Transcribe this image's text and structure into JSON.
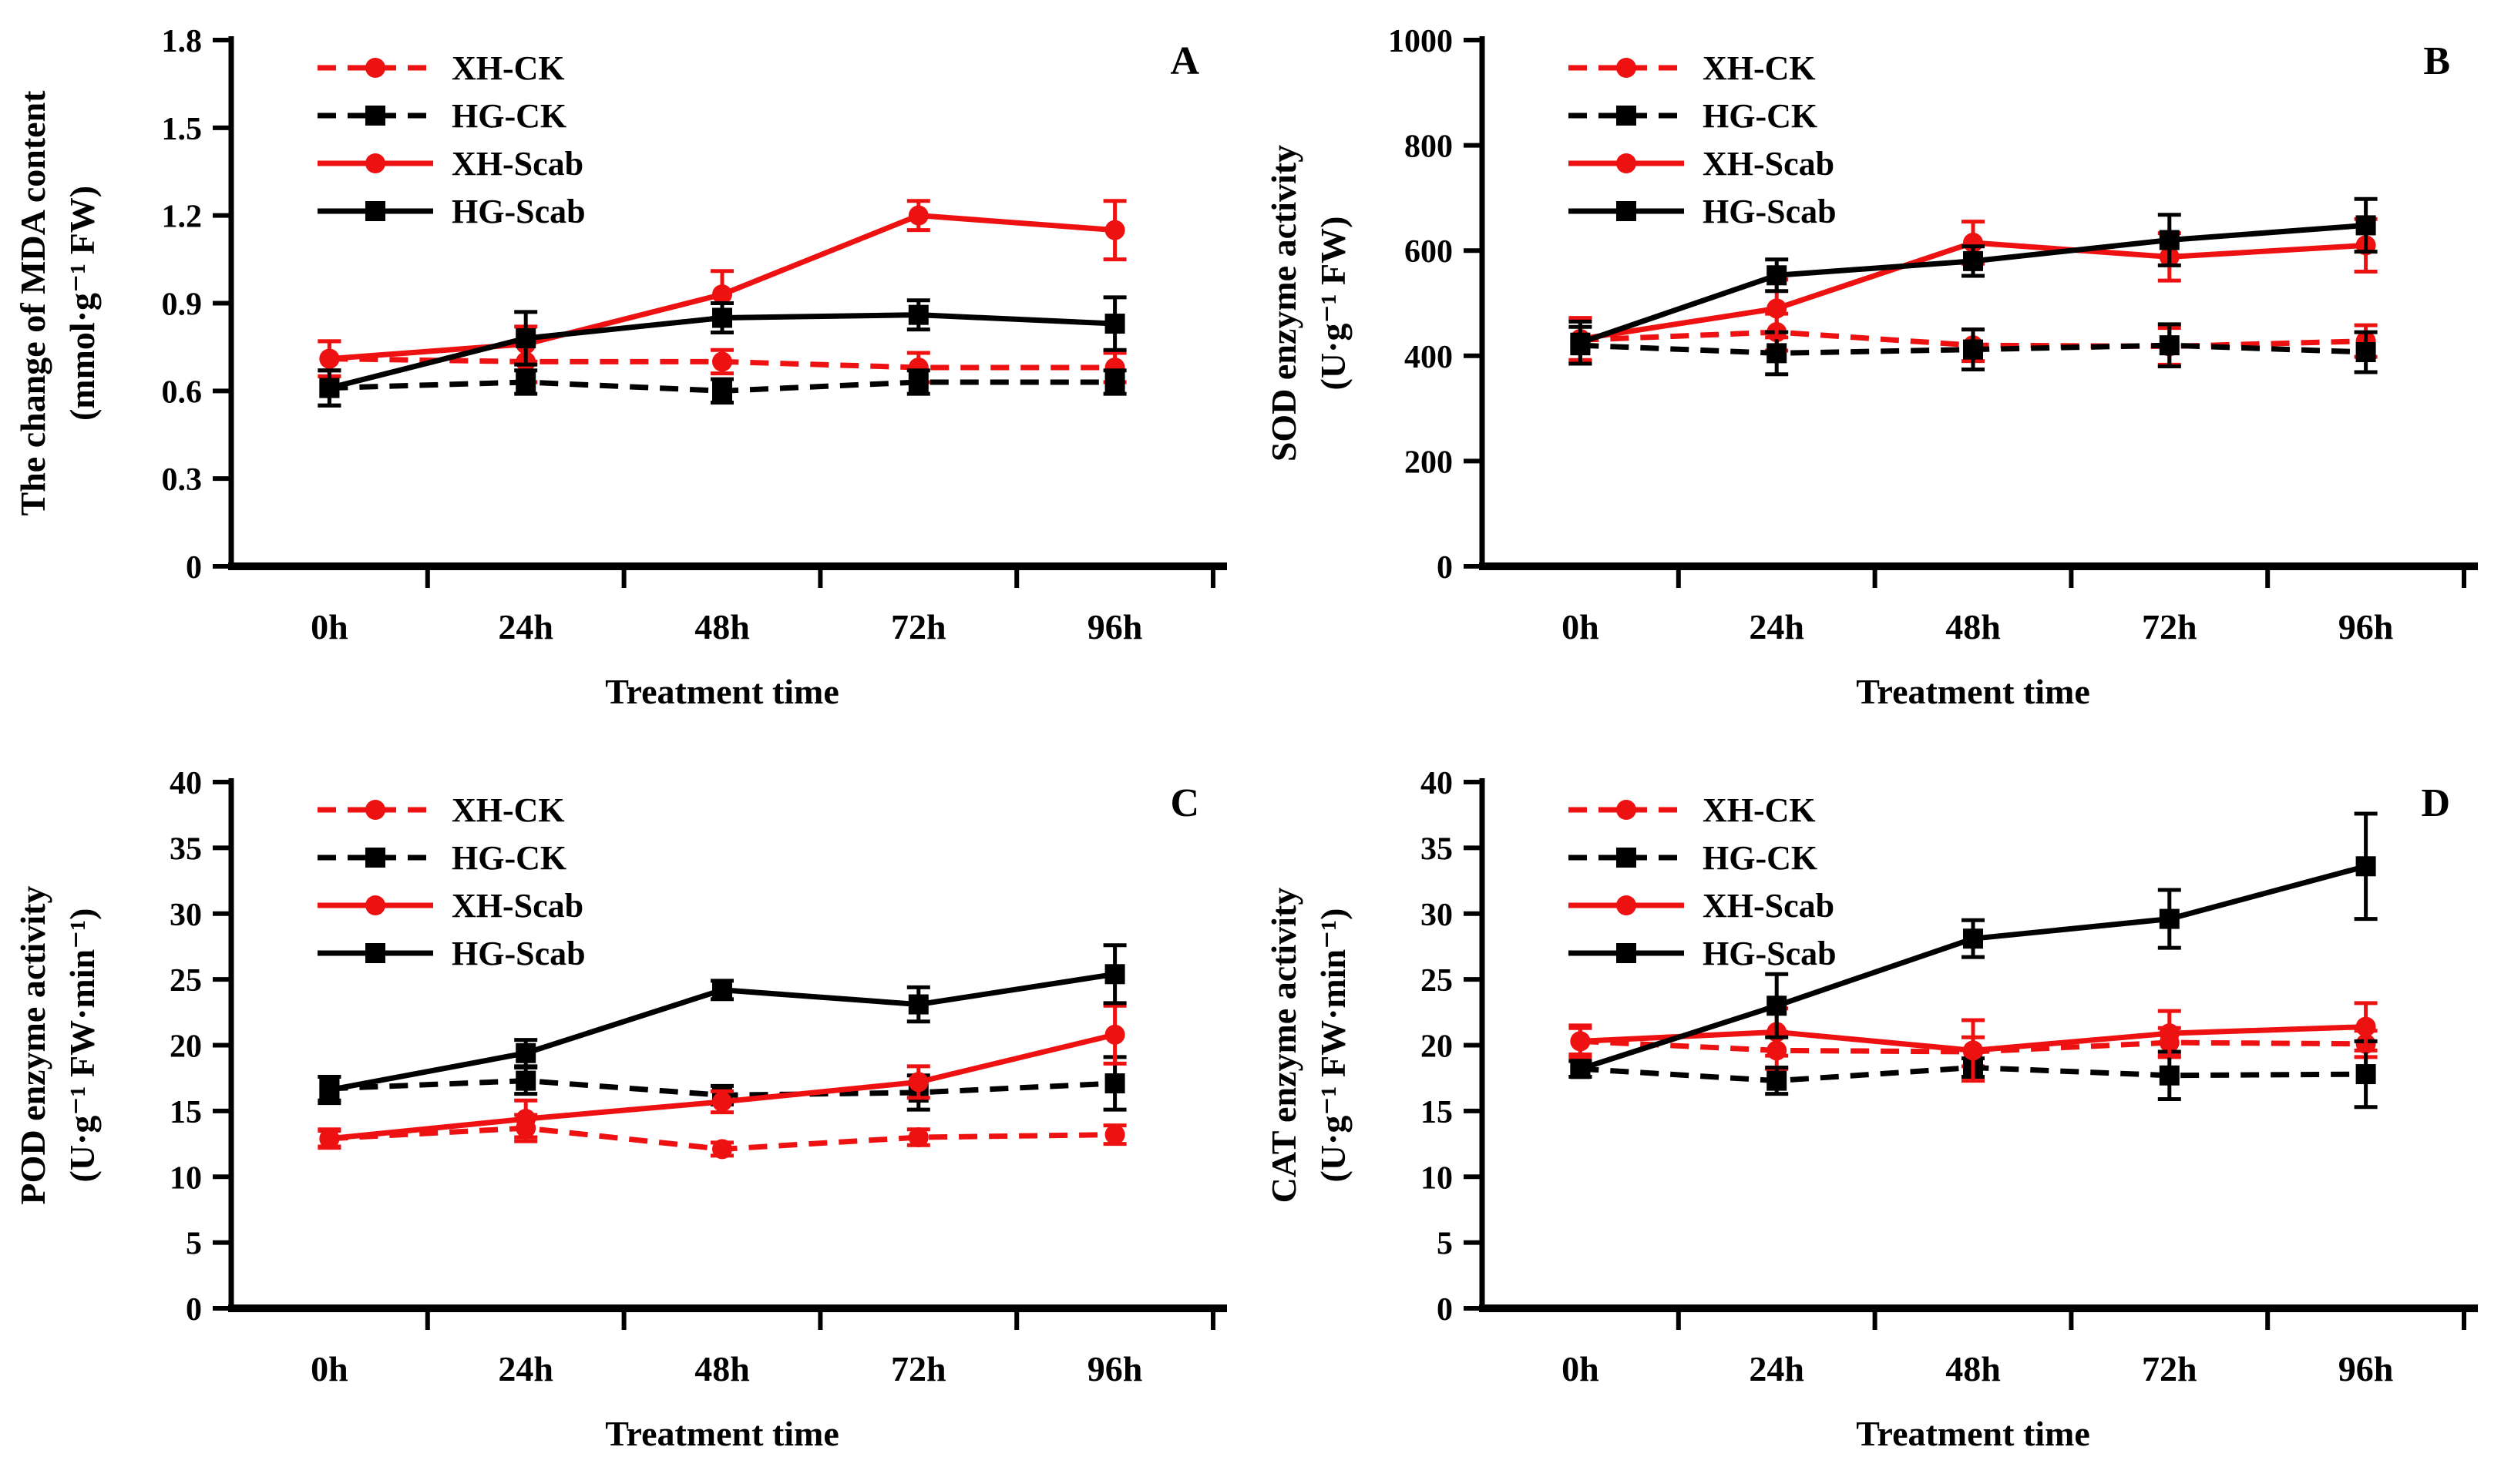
{
  "figure": {
    "xlabel": "Treatment time",
    "categories": [
      "0h",
      "24h",
      "48h",
      "72h",
      "96h"
    ],
    "legend_labels": [
      "XH-CK",
      "HG-CK",
      "XH-Scab",
      "HG-Scab"
    ],
    "colors": {
      "red": "#ee1111",
      "black": "#000000",
      "background": "#ffffff"
    }
  },
  "chart_data": [
    {
      "type": "line",
      "panel_letter": "A",
      "ylabel_line1": "The change of MDA content",
      "ylabel_line2": "(mmol·g⁻¹ FW)",
      "xlabel": "Treatment time",
      "categories": [
        "0h",
        "24h",
        "48h",
        "72h",
        "96h"
      ],
      "ylim": [
        0,
        1.8
      ],
      "yticks": [
        0,
        0.3,
        0.6,
        0.9,
        1.2,
        1.5,
        1.8
      ],
      "ytick_labels": [
        "0",
        "0.3",
        "0.6",
        "0.9",
        "1.2",
        "1.5",
        "1.8"
      ],
      "grid": false,
      "legend_position": "top-left-inside",
      "series": [
        {
          "name": "XH-CK",
          "color": "#ee1111",
          "dashed": true,
          "marker": "circle",
          "values": [
            0.71,
            0.7,
            0.7,
            0.68,
            0.68
          ],
          "errors": [
            0.06,
            0.07,
            0.04,
            0.05,
            0.05
          ]
        },
        {
          "name": "HG-CK",
          "color": "#000000",
          "dashed": true,
          "marker": "square",
          "values": [
            0.61,
            0.63,
            0.6,
            0.63,
            0.63
          ],
          "errors": [
            0.06,
            0.04,
            0.04,
            0.04,
            0.04
          ]
        },
        {
          "name": "XH-Scab",
          "color": "#ee1111",
          "dashed": false,
          "marker": "circle",
          "values": [
            0.71,
            0.76,
            0.93,
            1.2,
            1.15
          ],
          "errors": [
            0.06,
            0.06,
            0.08,
            0.05,
            0.1
          ]
        },
        {
          "name": "HG-Scab",
          "color": "#000000",
          "dashed": false,
          "marker": "square",
          "values": [
            0.61,
            0.78,
            0.85,
            0.86,
            0.83
          ],
          "errors": [
            0.06,
            0.09,
            0.05,
            0.05,
            0.09
          ]
        }
      ]
    },
    {
      "type": "line",
      "panel_letter": "B",
      "ylabel_line1": "SOD enzyme activity",
      "ylabel_line2": "(U·g⁻¹ FW)",
      "xlabel": "Treatment time",
      "categories": [
        "0h",
        "24h",
        "48h",
        "72h",
        "96h"
      ],
      "ylim": [
        0,
        1000
      ],
      "yticks": [
        0,
        200,
        400,
        600,
        800,
        1000
      ],
      "ytick_labels": [
        "0",
        "200",
        "400",
        "600",
        "800",
        "1000"
      ],
      "grid": false,
      "legend_position": "top-left-inside",
      "series": [
        {
          "name": "XH-CK",
          "color": "#ee1111",
          "dashed": true,
          "marker": "circle",
          "values": [
            430,
            445,
            420,
            418,
            428
          ],
          "errors": [
            40,
            35,
            30,
            35,
            30
          ]
        },
        {
          "name": "HG-CK",
          "color": "#000000",
          "dashed": true,
          "marker": "square",
          "values": [
            420,
            405,
            412,
            420,
            407
          ],
          "errors": [
            35,
            40,
            38,
            40,
            38
          ]
        },
        {
          "name": "XH-Scab",
          "color": "#ee1111",
          "dashed": false,
          "marker": "circle",
          "values": [
            432,
            490,
            615,
            588,
            610
          ],
          "errors": [
            40,
            55,
            40,
            45,
            50
          ]
        },
        {
          "name": "HG-Scab",
          "color": "#000000",
          "dashed": false,
          "marker": "square",
          "values": [
            425,
            553,
            580,
            620,
            648
          ],
          "errors": [
            40,
            30,
            28,
            48,
            50
          ]
        }
      ]
    },
    {
      "type": "line",
      "panel_letter": "C",
      "ylabel_line1": "POD enzyme activity",
      "ylabel_line2": "(U·g⁻¹ FW·min⁻¹)",
      "xlabel": "Treatment time",
      "categories": [
        "0h",
        "24h",
        "48h",
        "72h",
        "96h"
      ],
      "ylim": [
        0,
        40
      ],
      "yticks": [
        0,
        5,
        10,
        15,
        20,
        25,
        30,
        35,
        40
      ],
      "ytick_labels": [
        "0",
        "5",
        "10",
        "15",
        "20",
        "25",
        "30",
        "35",
        "40"
      ],
      "grid": false,
      "legend_position": "top-left-inside",
      "series": [
        {
          "name": "XH-CK",
          "color": "#ee1111",
          "dashed": true,
          "marker": "circle",
          "values": [
            12.9,
            13.7,
            12.1,
            13.0,
            13.2
          ],
          "errors": [
            0.6,
            1.0,
            0.5,
            0.6,
            0.7
          ]
        },
        {
          "name": "HG-CK",
          "color": "#000000",
          "dashed": true,
          "marker": "square",
          "values": [
            16.7,
            17.3,
            16.2,
            16.4,
            17.1
          ],
          "errors": [
            0.9,
            1.0,
            0.7,
            1.3,
            2.0
          ]
        },
        {
          "name": "XH-Scab",
          "color": "#ee1111",
          "dashed": false,
          "marker": "circle",
          "values": [
            12.9,
            14.4,
            15.7,
            17.2,
            20.8
          ],
          "errors": [
            0.7,
            1.4,
            0.8,
            1.2,
            2.2
          ]
        },
        {
          "name": "HG-Scab",
          "color": "#000000",
          "dashed": false,
          "marker": "square",
          "values": [
            16.6,
            19.4,
            24.2,
            23.1,
            25.4
          ],
          "errors": [
            1.0,
            1.0,
            0.7,
            1.3,
            2.2
          ]
        }
      ]
    },
    {
      "type": "line",
      "panel_letter": "D",
      "ylabel_line1": "CAT enzyme activity",
      "ylabel_line2": "(U·g⁻¹ FW·min⁻¹)",
      "xlabel": "Treatment time",
      "categories": [
        "0h",
        "24h",
        "48h",
        "72h",
        "96h"
      ],
      "ylim": [
        0,
        40
      ],
      "yticks": [
        0,
        5,
        10,
        15,
        20,
        25,
        30,
        35,
        40
      ],
      "ytick_labels": [
        "0",
        "5",
        "10",
        "15",
        "20",
        "25",
        "30",
        "35",
        "40"
      ],
      "grid": false,
      "legend_position": "top-left-inside",
      "series": [
        {
          "name": "XH-CK",
          "color": "#ee1111",
          "dashed": true,
          "marker": "circle",
          "values": [
            20.3,
            19.6,
            19.5,
            20.2,
            20.1
          ],
          "errors": [
            1.0,
            1.4,
            1.1,
            1.1,
            1.0
          ]
        },
        {
          "name": "HG-CK",
          "color": "#000000",
          "dashed": true,
          "marker": "square",
          "values": [
            18.2,
            17.3,
            18.3,
            17.7,
            17.8
          ],
          "errors": [
            0.6,
            1.0,
            0.7,
            1.8,
            2.5
          ]
        },
        {
          "name": "XH-Scab",
          "color": "#ee1111",
          "dashed": false,
          "marker": "circle",
          "values": [
            20.3,
            21.0,
            19.6,
            20.9,
            21.4
          ],
          "errors": [
            1.2,
            1.8,
            2.3,
            1.7,
            1.8
          ]
        },
        {
          "name": "HG-Scab",
          "color": "#000000",
          "dashed": false,
          "marker": "square",
          "values": [
            18.2,
            23.0,
            28.1,
            29.6,
            33.6
          ],
          "errors": [
            0.6,
            2.4,
            1.4,
            2.2,
            4.0
          ]
        }
      ]
    }
  ]
}
